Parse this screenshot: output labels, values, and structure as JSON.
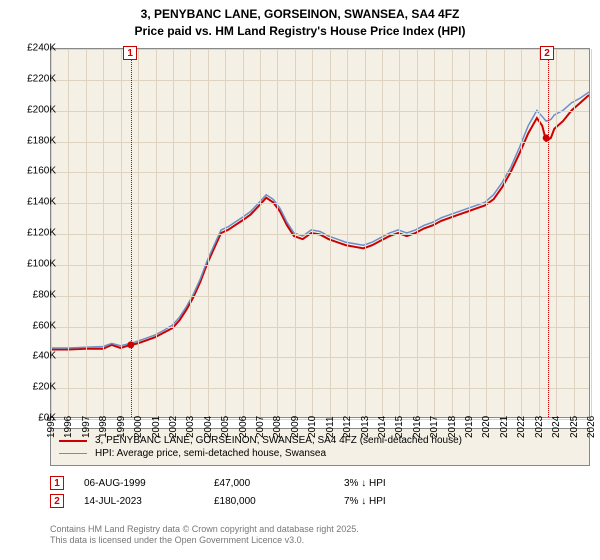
{
  "type": "line",
  "title_line1": "3, PENYBANC LANE, GORSEINON, SWANSEA, SA4 4FZ",
  "title_line2": "Price paid vs. HM Land Registry's House Price Index (HPI)",
  "title_fontsize": 12,
  "title_fontweight": "bold",
  "plot_background": "#f5f0e6",
  "grid_color": "#ddd3c0",
  "axis_label_fontsize": 10,
  "x": {
    "min": 1995,
    "max": 2026,
    "ticks": [
      1995,
      1996,
      1997,
      1998,
      1999,
      2000,
      2001,
      2002,
      2003,
      2004,
      2005,
      2006,
      2007,
      2008,
      2009,
      2010,
      2011,
      2012,
      2013,
      2014,
      2015,
      2016,
      2017,
      2018,
      2019,
      2020,
      2021,
      2022,
      2023,
      2024,
      2025,
      2026
    ]
  },
  "y": {
    "min": 0,
    "max": 240000,
    "ticks": [
      0,
      20000,
      40000,
      60000,
      80000,
      100000,
      120000,
      140000,
      160000,
      180000,
      200000,
      220000,
      240000
    ],
    "tick_labels": [
      "£0K",
      "£20K",
      "£40K",
      "£60K",
      "£80K",
      "£100K",
      "£120K",
      "£140K",
      "£160K",
      "£180K",
      "£200K",
      "£220K",
      "£240K"
    ]
  },
  "series": [
    {
      "name": "subject",
      "color": "#cc0000",
      "width": 2,
      "legend_label": "3, PENYBANC LANE, GORSEINON, SWANSEA, SA4 4FZ (semi-detached house)",
      "points": [
        [
          1995.0,
          44000
        ],
        [
          1996.0,
          44000
        ],
        [
          1997.0,
          44500
        ],
        [
          1998.0,
          44500
        ],
        [
          1998.5,
          47000
        ],
        [
          1999.0,
          45000
        ],
        [
          1999.6,
          47000
        ],
        [
          2000.0,
          48000
        ],
        [
          2000.5,
          50000
        ],
        [
          2001.0,
          52000
        ],
        [
          2001.5,
          55000
        ],
        [
          2002.0,
          58000
        ],
        [
          2002.4,
          63000
        ],
        [
          2002.8,
          70000
        ],
        [
          2003.2,
          78000
        ],
        [
          2003.6,
          88000
        ],
        [
          2004.0,
          100000
        ],
        [
          2004.4,
          110000
        ],
        [
          2004.8,
          120000
        ],
        [
          2005.2,
          122000
        ],
        [
          2005.6,
          125000
        ],
        [
          2006.0,
          128000
        ],
        [
          2006.5,
          132000
        ],
        [
          2007.0,
          138000
        ],
        [
          2007.4,
          143000
        ],
        [
          2007.8,
          140000
        ],
        [
          2008.2,
          134000
        ],
        [
          2008.6,
          125000
        ],
        [
          2009.0,
          118000
        ],
        [
          2009.5,
          116000
        ],
        [
          2010.0,
          120000
        ],
        [
          2010.5,
          119000
        ],
        [
          2011.0,
          116000
        ],
        [
          2011.5,
          114000
        ],
        [
          2012.0,
          112000
        ],
        [
          2012.5,
          111000
        ],
        [
          2013.0,
          110000
        ],
        [
          2013.5,
          112000
        ],
        [
          2014.0,
          115000
        ],
        [
          2014.5,
          118000
        ],
        [
          2015.0,
          120000
        ],
        [
          2015.5,
          118000
        ],
        [
          2016.0,
          120000
        ],
        [
          2016.5,
          123000
        ],
        [
          2017.0,
          125000
        ],
        [
          2017.5,
          128000
        ],
        [
          2018.0,
          130000
        ],
        [
          2018.5,
          132000
        ],
        [
          2019.0,
          134000
        ],
        [
          2019.5,
          136000
        ],
        [
          2020.0,
          138000
        ],
        [
          2020.5,
          142000
        ],
        [
          2021.0,
          150000
        ],
        [
          2021.5,
          160000
        ],
        [
          2022.0,
          172000
        ],
        [
          2022.5,
          185000
        ],
        [
          2023.0,
          195000
        ],
        [
          2023.3,
          190000
        ],
        [
          2023.53,
          180000
        ],
        [
          2023.8,
          182000
        ],
        [
          2024.0,
          188000
        ],
        [
          2024.5,
          193000
        ],
        [
          2025.0,
          200000
        ],
        [
          2025.5,
          205000
        ],
        [
          2026.0,
          210000
        ]
      ]
    },
    {
      "name": "hpi",
      "color": "#6a8fc9",
      "width": 1.5,
      "legend_label": "HPI: Average price, semi-detached house, Swansea",
      "points": [
        [
          1995.0,
          45000
        ],
        [
          1996.0,
          45000
        ],
        [
          1997.0,
          45500
        ],
        [
          1998.0,
          46000
        ],
        [
          1998.5,
          48000
        ],
        [
          1999.0,
          46500
        ],
        [
          1999.6,
          48000
        ],
        [
          2000.0,
          49500
        ],
        [
          2000.5,
          51500
        ],
        [
          2001.0,
          53500
        ],
        [
          2001.5,
          56500
        ],
        [
          2002.0,
          60000
        ],
        [
          2002.4,
          65000
        ],
        [
          2002.8,
          72000
        ],
        [
          2003.2,
          80000
        ],
        [
          2003.6,
          90000
        ],
        [
          2004.0,
          102000
        ],
        [
          2004.4,
          112000
        ],
        [
          2004.8,
          122000
        ],
        [
          2005.2,
          124000
        ],
        [
          2005.6,
          127000
        ],
        [
          2006.0,
          130000
        ],
        [
          2006.5,
          134000
        ],
        [
          2007.0,
          140000
        ],
        [
          2007.4,
          145000
        ],
        [
          2007.8,
          142000
        ],
        [
          2008.2,
          136000
        ],
        [
          2008.6,
          127000
        ],
        [
          2009.0,
          120000
        ],
        [
          2009.5,
          118000
        ],
        [
          2010.0,
          122000
        ],
        [
          2010.5,
          121000
        ],
        [
          2011.0,
          118000
        ],
        [
          2011.5,
          116000
        ],
        [
          2012.0,
          114000
        ],
        [
          2012.5,
          113000
        ],
        [
          2013.0,
          112000
        ],
        [
          2013.5,
          114000
        ],
        [
          2014.0,
          117000
        ],
        [
          2014.5,
          120000
        ],
        [
          2015.0,
          122000
        ],
        [
          2015.5,
          120000
        ],
        [
          2016.0,
          122000
        ],
        [
          2016.5,
          125000
        ],
        [
          2017.0,
          127000
        ],
        [
          2017.5,
          130000
        ],
        [
          2018.0,
          132000
        ],
        [
          2018.5,
          134000
        ],
        [
          2019.0,
          136000
        ],
        [
          2019.5,
          138000
        ],
        [
          2020.0,
          140000
        ],
        [
          2020.5,
          145000
        ],
        [
          2021.0,
          153000
        ],
        [
          2021.5,
          163000
        ],
        [
          2022.0,
          176000
        ],
        [
          2022.5,
          190000
        ],
        [
          2023.0,
          200000
        ],
        [
          2023.3,
          196000
        ],
        [
          2023.53,
          193000
        ],
        [
          2023.8,
          194000
        ],
        [
          2024.0,
          197000
        ],
        [
          2024.5,
          200000
        ],
        [
          2025.0,
          205000
        ],
        [
          2025.5,
          208000
        ],
        [
          2026.0,
          212000
        ]
      ]
    }
  ],
  "markers": [
    {
      "id": "1",
      "x": 1999.6,
      "date": "06-AUG-1999",
      "price": "£47,000",
      "hpi_delta": "3% ↓ HPI",
      "box_color": "#cc0000"
    },
    {
      "id": "2",
      "x": 2023.53,
      "date": "14-JUL-2023",
      "price": "£180,000",
      "hpi_delta": "7% ↓ HPI",
      "box_color": "#cc0000"
    }
  ],
  "legend": {
    "border_color": "#888",
    "background": "#f5f0e6",
    "fontsize": 10
  },
  "attribution_line1": "Contains HM Land Registry data © Crown copyright and database right 2025.",
  "attribution_line2": "This data is licensed under the Open Government Licence v3.0."
}
